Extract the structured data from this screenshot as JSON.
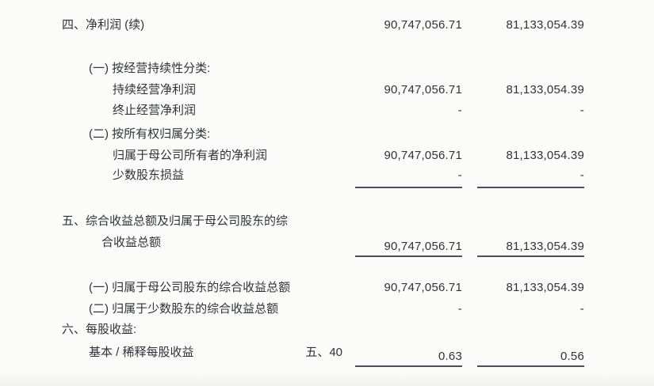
{
  "document": {
    "kind": "scanned-financial-statement",
    "language": "zh-CN",
    "colors": {
      "background": "#fbfbf9",
      "text": "#2f3338",
      "rule_line": "#49525c"
    }
  },
  "rows": [
    {
      "label": "四、净利润 (续)",
      "note": "",
      "current": "90,747,056.71",
      "prior": "81,133,054.39"
    },
    {
      "label": "(一) 按经营持续性分类:",
      "note": "",
      "current": "",
      "prior": ""
    },
    {
      "label": "持续经营净利润",
      "note": "",
      "current": "90,747,056.71",
      "prior": "81,133,054.39"
    },
    {
      "label": "终止经营净利润",
      "note": "",
      "current": "-",
      "prior": "-"
    },
    {
      "label": "(二) 按所有权归属分类:",
      "note": "",
      "current": "",
      "prior": ""
    },
    {
      "label": "归属于母公司所有者的净利润",
      "note": "",
      "current": "90,747,056.71",
      "prior": "81,133,054.39"
    },
    {
      "label": "少数股东损益",
      "note": "",
      "current": "-",
      "prior": "-"
    },
    {
      "label": "五、综合收益总额及归属于母公司股东的综",
      "note": "",
      "current": "",
      "prior": ""
    },
    {
      "label": "合收益总额",
      "note": "",
      "current": "90,747,056.71",
      "prior": "81,133,054.39"
    },
    {
      "label": "(一) 归属于母公司股东的综合收益总额",
      "note": "",
      "current": "90,747,056.71",
      "prior": "81,133,054.39"
    },
    {
      "label": "(二) 归属于少数股东的综合收益总额",
      "note": "",
      "current": "-",
      "prior": "-"
    },
    {
      "label": "六、每股收益:",
      "note": "",
      "current": "",
      "prior": ""
    },
    {
      "label": "基本 / 稀释每股收益",
      "note": "五、40",
      "current": "0.63",
      "prior": "0.56"
    }
  ]
}
